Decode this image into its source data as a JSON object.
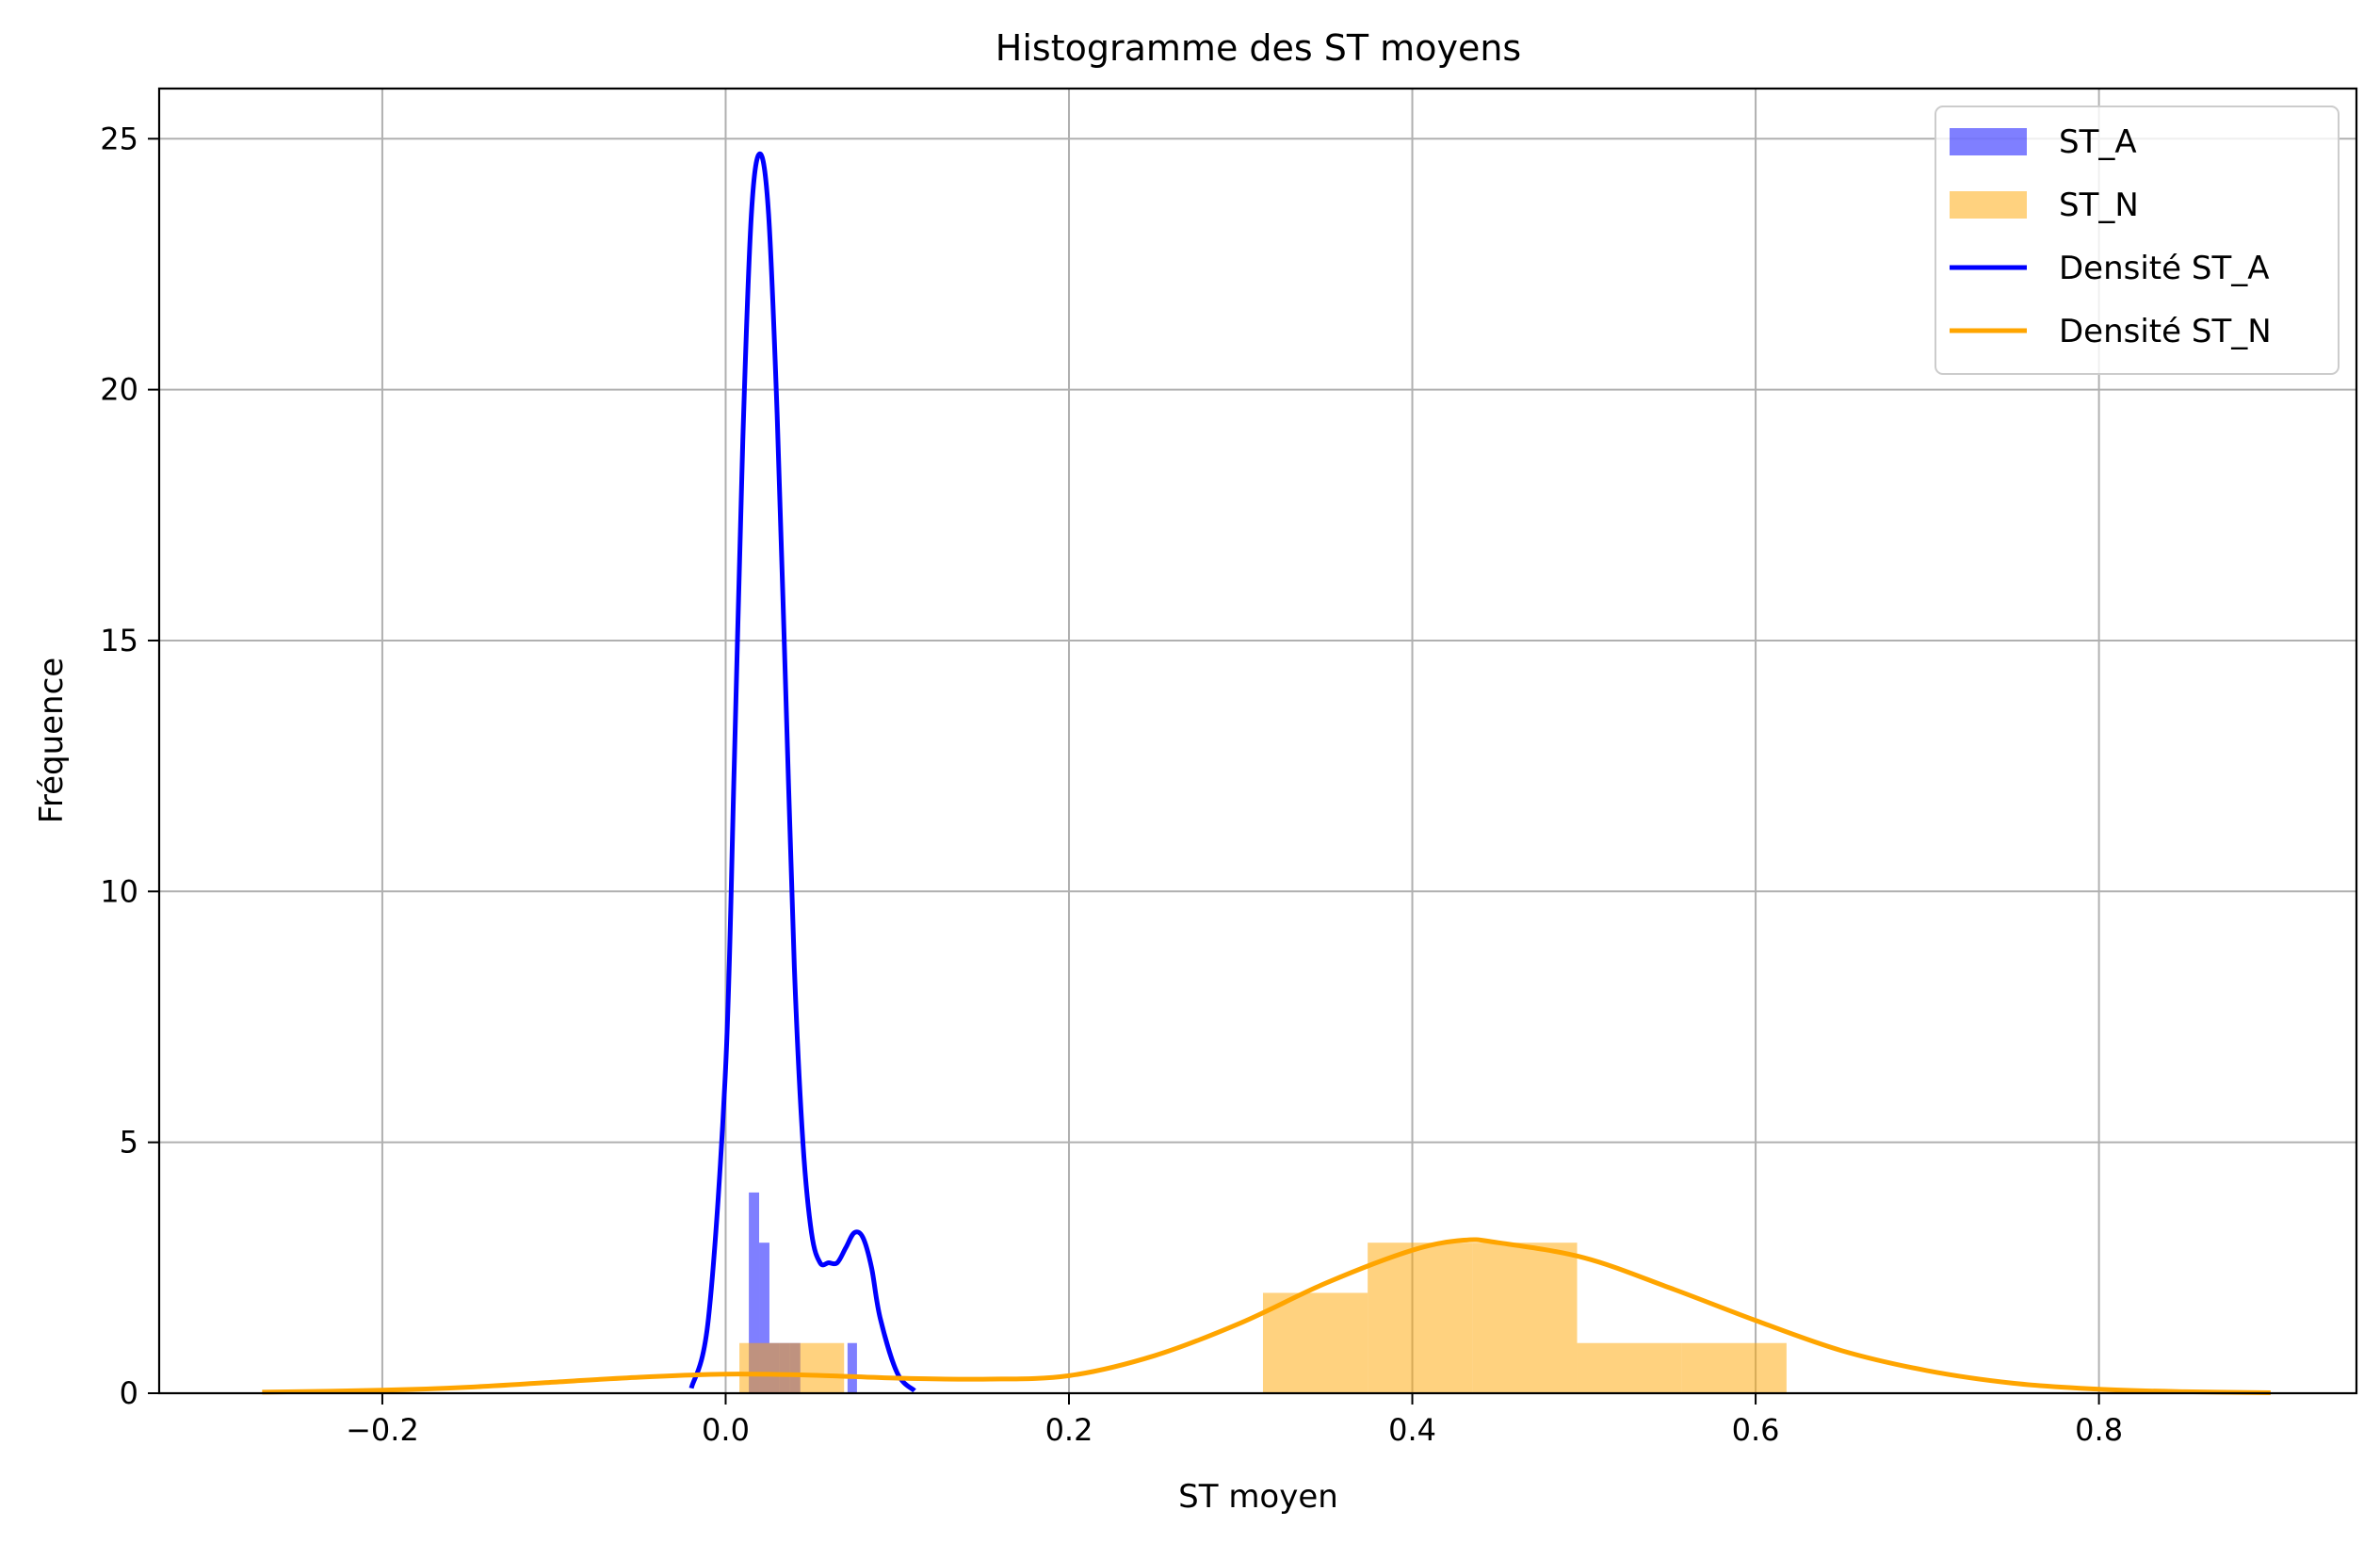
{
  "chart_data": {
    "type": "histogram",
    "title": "Histogramme des ST moyens",
    "xlabel": "ST moyen",
    "ylabel": "Fréquence",
    "xlim": [
      -0.33,
      0.95
    ],
    "ylim": [
      0,
      26
    ],
    "xticks": [
      -0.2,
      0.0,
      0.2,
      0.4,
      0.6,
      0.8
    ],
    "xtick_labels": [
      "−0.2",
      "0.0",
      "0.2",
      "0.4",
      "0.6",
      "0.8"
    ],
    "yticks": [
      0,
      5,
      10,
      15,
      20,
      25
    ],
    "ytick_labels": [
      "0",
      "5",
      "10",
      "15",
      "20",
      "25"
    ],
    "grid": true,
    "legend_position": "top-right",
    "histograms": [
      {
        "name": "ST_A",
        "color": "#0000ff",
        "opacity": 0.5,
        "bins": [
          {
            "x0": 0.0135,
            "x1": 0.0195,
            "count": 4
          },
          {
            "x0": 0.0195,
            "x1": 0.0255,
            "count": 3
          },
          {
            "x0": 0.0255,
            "x1": 0.0315,
            "count": 1
          },
          {
            "x0": 0.0315,
            "x1": 0.0375,
            "count": 1
          },
          {
            "x0": 0.0375,
            "x1": 0.0435,
            "count": 1
          },
          {
            "x0": 0.071,
            "x1": 0.0765,
            "count": 1
          }
        ]
      },
      {
        "name": "ST_N",
        "color": "#ffa500",
        "opacity": 0.5,
        "bins": [
          {
            "x0": 0.008,
            "x1": 0.069,
            "count": 1
          },
          {
            "x0": 0.069,
            "x1": 0.13,
            "count": 0
          },
          {
            "x0": 0.13,
            "x1": 0.191,
            "count": 0
          },
          {
            "x0": 0.191,
            "x1": 0.252,
            "count": 0
          },
          {
            "x0": 0.252,
            "x1": 0.313,
            "count": 0
          },
          {
            "x0": 0.313,
            "x1": 0.374,
            "count": 2
          },
          {
            "x0": 0.374,
            "x1": 0.435,
            "count": 3
          },
          {
            "x0": 0.435,
            "x1": 0.496,
            "count": 3
          },
          {
            "x0": 0.496,
            "x1": 0.557,
            "count": 1
          },
          {
            "x0": 0.557,
            "x1": 0.618,
            "count": 1
          }
        ]
      }
    ],
    "density_series": [
      {
        "name": "Densité ST_A",
        "color": "#0000ff",
        "x": [
          -0.02,
          -0.01,
          0.0,
          0.005,
          0.01,
          0.015,
          0.02,
          0.025,
          0.03,
          0.035,
          0.04,
          0.045,
          0.05,
          0.055,
          0.06,
          0.065,
          0.07,
          0.075,
          0.08,
          0.085,
          0.09,
          0.1,
          0.11
        ],
        "y": [
          0.1,
          1.5,
          6.5,
          12.5,
          19.0,
          23.5,
          24.7,
          23.5,
          19.5,
          14.0,
          8.5,
          5.0,
          3.2,
          2.6,
          2.6,
          2.6,
          2.9,
          3.2,
          3.1,
          2.5,
          1.5,
          0.4,
          0.05
        ]
      },
      {
        "name": "Densité ST_N",
        "color": "#ffa500",
        "x": [
          -0.27,
          -0.2,
          -0.15,
          -0.1,
          -0.05,
          0.0,
          0.05,
          0.1,
          0.15,
          0.2,
          0.25,
          0.3,
          0.35,
          0.4,
          0.43,
          0.45,
          0.5,
          0.55,
          0.6,
          0.65,
          0.7,
          0.75,
          0.8,
          0.85,
          0.9
        ],
        "y": [
          0.02,
          0.06,
          0.12,
          0.22,
          0.32,
          0.38,
          0.36,
          0.3,
          0.28,
          0.35,
          0.75,
          1.4,
          2.2,
          2.85,
          3.05,
          3.0,
          2.7,
          2.1,
          1.45,
          0.85,
          0.45,
          0.2,
          0.08,
          0.03,
          0.01
        ]
      }
    ],
    "legend": [
      {
        "label": "ST_A",
        "kind": "patch",
        "color": "#0000ff",
        "opacity": 0.5
      },
      {
        "label": "ST_N",
        "kind": "patch",
        "color": "#ffa500",
        "opacity": 0.5
      },
      {
        "label": "Densité ST_A",
        "kind": "line",
        "color": "#0000ff"
      },
      {
        "label": "Densité ST_N",
        "kind": "line",
        "color": "#ffa500"
      }
    ]
  }
}
